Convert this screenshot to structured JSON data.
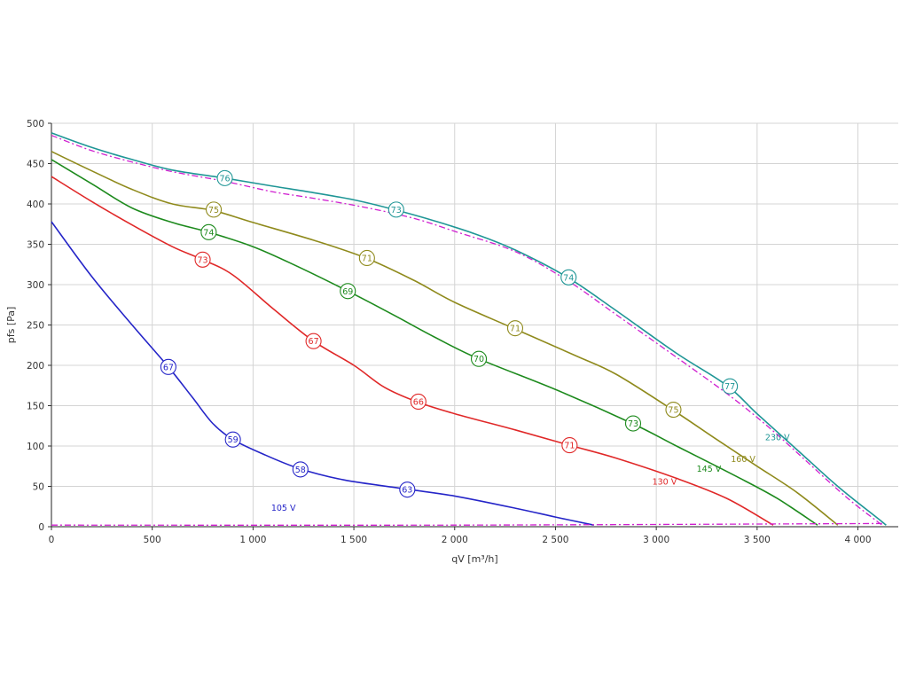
{
  "chart_data": {
    "type": "line",
    "title": "",
    "xlabel": "qV [m³/h]",
    "ylabel": "pfs [Pa]",
    "xlim": [
      0,
      4200
    ],
    "ylim": [
      0,
      500
    ],
    "x_ticks": [
      0,
      500,
      1000,
      1500,
      2000,
      2500,
      3000,
      3500,
      4000
    ],
    "x_tick_labels": [
      "0",
      "500",
      "1 000",
      "1 500",
      "2 000",
      "2 500",
      "3 000",
      "3 500",
      "4 000"
    ],
    "y_ticks": [
      0,
      50,
      100,
      150,
      200,
      250,
      300,
      350,
      400,
      450,
      500
    ],
    "y_tick_labels": [
      "0",
      "50",
      "100",
      "150",
      "200",
      "250",
      "300",
      "350",
      "400",
      "450",
      "500"
    ],
    "grid": true,
    "legend": "none",
    "series": [
      {
        "name": "105 V",
        "color": "#2525c8",
        "dash": "solid",
        "label_pos": [
          1090,
          20
        ],
        "points": [
          [
            0,
            378
          ],
          [
            200,
            310
          ],
          [
            400,
            250
          ],
          [
            580,
            198
          ],
          [
            700,
            160
          ],
          [
            800,
            128
          ],
          [
            900,
            108
          ],
          [
            1050,
            90
          ],
          [
            1230,
            72
          ],
          [
            1450,
            58
          ],
          [
            1750,
            47
          ],
          [
            2000,
            38
          ],
          [
            2300,
            23
          ],
          [
            2500,
            12
          ],
          [
            2690,
            2
          ]
        ],
        "markers": [
          {
            "x": 580,
            "y": 198,
            "label": "67"
          },
          {
            "x": 900,
            "y": 108,
            "label": "59"
          },
          {
            "x": 1235,
            "y": 71,
            "label": "58"
          },
          {
            "x": 1765,
            "y": 46,
            "label": "63"
          }
        ]
      },
      {
        "name": "130 V",
        "color": "#e02828",
        "dash": "solid",
        "label_pos": [
          2980,
          52
        ],
        "points": [
          [
            0,
            434
          ],
          [
            200,
            403
          ],
          [
            400,
            374
          ],
          [
            600,
            347
          ],
          [
            750,
            331
          ],
          [
            900,
            312
          ],
          [
            1100,
            270
          ],
          [
            1300,
            230
          ],
          [
            1500,
            200
          ],
          [
            1650,
            173
          ],
          [
            1810,
            155
          ],
          [
            2000,
            140
          ],
          [
            2300,
            120
          ],
          [
            2570,
            101
          ],
          [
            2800,
            85
          ],
          [
            3100,
            60
          ],
          [
            3350,
            35
          ],
          [
            3580,
            2
          ]
        ],
        "markers": [
          {
            "x": 750,
            "y": 331,
            "label": "73"
          },
          {
            "x": 1300,
            "y": 230,
            "label": "67"
          },
          {
            "x": 1820,
            "y": 155,
            "label": "66"
          },
          {
            "x": 2570,
            "y": 101,
            "label": "71"
          }
        ]
      },
      {
        "name": "145 V",
        "color": "#1d8a1d",
        "dash": "solid",
        "label_pos": [
          3200,
          68
        ],
        "points": [
          [
            0,
            455
          ],
          [
            200,
            425
          ],
          [
            400,
            395
          ],
          [
            600,
            377
          ],
          [
            780,
            365
          ],
          [
            1000,
            347
          ],
          [
            1200,
            325
          ],
          [
            1470,
            292
          ],
          [
            1700,
            262
          ],
          [
            1900,
            235
          ],
          [
            2120,
            208
          ],
          [
            2500,
            170
          ],
          [
            2880,
            128
          ],
          [
            3100,
            100
          ],
          [
            3400,
            62
          ],
          [
            3600,
            35
          ],
          [
            3800,
            2
          ]
        ],
        "markers": [
          {
            "x": 780,
            "y": 365,
            "label": "74"
          },
          {
            "x": 1470,
            "y": 292,
            "label": "69"
          },
          {
            "x": 2120,
            "y": 208,
            "label": "70"
          },
          {
            "x": 2885,
            "y": 128,
            "label": "73"
          }
        ]
      },
      {
        "name": "160 V",
        "color": "#8f8a1c",
        "dash": "solid",
        "label_pos": [
          3370,
          80
        ],
        "points": [
          [
            0,
            465
          ],
          [
            200,
            441
          ],
          [
            400,
            418
          ],
          [
            600,
            400
          ],
          [
            800,
            392
          ],
          [
            1000,
            377
          ],
          [
            1300,
            355
          ],
          [
            1560,
            333
          ],
          [
            1800,
            305
          ],
          [
            2000,
            278
          ],
          [
            2300,
            245
          ],
          [
            2600,
            212
          ],
          [
            2800,
            189
          ],
          [
            3080,
            145
          ],
          [
            3300,
            108
          ],
          [
            3500,
            75
          ],
          [
            3700,
            42
          ],
          [
            3900,
            2
          ]
        ],
        "markers": [
          {
            "x": 805,
            "y": 393,
            "label": "75"
          },
          {
            "x": 1565,
            "y": 333,
            "label": "71"
          },
          {
            "x": 2300,
            "y": 246,
            "label": "71"
          },
          {
            "x": 3085,
            "y": 145,
            "label": "75"
          }
        ]
      },
      {
        "name": "230 V",
        "color": "#1f9696",
        "dash": "solid",
        "label_pos": [
          3540,
          107
        ],
        "points": [
          [
            0,
            488
          ],
          [
            200,
            470
          ],
          [
            400,
            455
          ],
          [
            600,
            442
          ],
          [
            860,
            432
          ],
          [
            1100,
            422
          ],
          [
            1300,
            414
          ],
          [
            1500,
            405
          ],
          [
            1700,
            393
          ],
          [
            1900,
            379
          ],
          [
            2100,
            363
          ],
          [
            2300,
            343
          ],
          [
            2560,
            309
          ],
          [
            2800,
            268
          ],
          [
            3100,
            215
          ],
          [
            3350,
            175
          ],
          [
            3500,
            140
          ],
          [
            3700,
            95
          ],
          [
            3900,
            50
          ],
          [
            4100,
            10
          ],
          [
            4140,
            2
          ]
        ],
        "markers": [
          {
            "x": 860,
            "y": 432,
            "label": "76"
          },
          {
            "x": 1710,
            "y": 393,
            "label": "73"
          },
          {
            "x": 2565,
            "y": 309,
            "label": "74"
          },
          {
            "x": 3365,
            "y": 174,
            "label": "77"
          }
        ]
      },
      {
        "name": "",
        "color": "#d020d0",
        "dash": "dashdot",
        "points": [
          [
            0,
            485
          ],
          [
            200,
            466
          ],
          [
            400,
            452
          ],
          [
            600,
            440
          ],
          [
            860,
            428
          ],
          [
            1100,
            415
          ],
          [
            1300,
            407
          ],
          [
            1550,
            396
          ],
          [
            1800,
            382
          ],
          [
            2000,
            366
          ],
          [
            2300,
            341
          ],
          [
            2560,
            305
          ],
          [
            2800,
            263
          ],
          [
            3100,
            210
          ],
          [
            3350,
            165
          ],
          [
            3550,
            125
          ],
          [
            3750,
            80
          ],
          [
            3950,
            35
          ],
          [
            4120,
            2
          ]
        ],
        "markers": []
      },
      {
        "name": "",
        "color": "#d020d0",
        "dash": "dashdot",
        "points": [
          [
            0,
            2
          ],
          [
            2000,
            2
          ],
          [
            4120,
            4
          ]
        ],
        "markers": []
      }
    ]
  }
}
